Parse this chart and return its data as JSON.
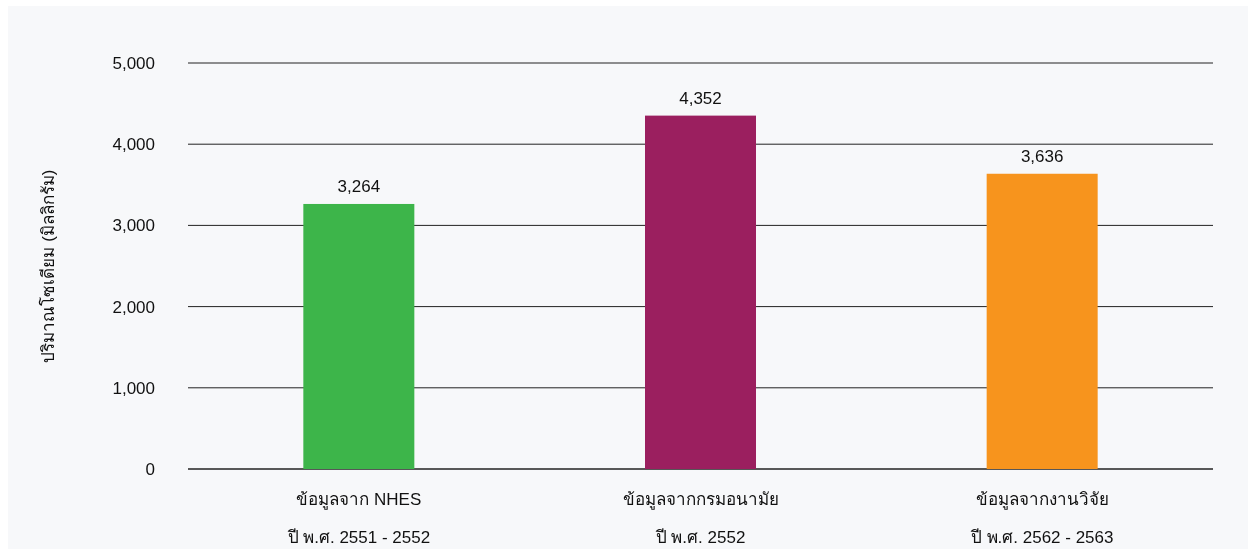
{
  "chart_data": {
    "type": "bar",
    "ylabel": "ปริมาณโซเดียม (มิลลิกรัม)",
    "categories": [
      "ข้อมูลจาก NHES\nปี พ.ศ. 2551 - 2552",
      "ข้อมูลจากกรมอนามัย\nปี พ.ศ. 2552",
      "ข้อมูลจากงานวิจัย\nปี พ.ศ. 2562 - 2563"
    ],
    "values": [
      3264,
      4352,
      3636
    ],
    "colors": [
      "#3db54a",
      "#9b1f5f",
      "#f7941d"
    ],
    "value_labels": [
      "3,264",
      "4,352",
      "3,636"
    ],
    "ylim": [
      0,
      5000
    ],
    "yticks": [
      0,
      {
        "value": 1000,
        "label": "1,000"
      },
      {
        "value": 2000,
        "label": "2,000"
      },
      {
        "value": 3000,
        "label": "3,000"
      },
      {
        "value": 4000,
        "label": "4,000"
      },
      {
        "value": 5000,
        "label": "5,000"
      }
    ],
    "grid": "y"
  }
}
